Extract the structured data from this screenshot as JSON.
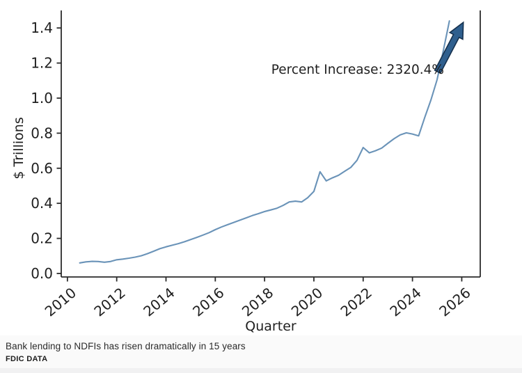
{
  "figure": {
    "caption": "Bank lending to NDFIs has risen dramatically in 15 years",
    "source": "FDIC DATA"
  },
  "chart_data": {
    "type": "line",
    "title": "",
    "xlabel": "Quarter",
    "ylabel": "$ Trillions",
    "annotation": "Percent Increase: 2320.4%",
    "x_tick_labels": [
      "2010",
      "2012",
      "2014",
      "2016",
      "2018",
      "2020",
      "2022",
      "2024",
      "2026"
    ],
    "x_tick_values": [
      2010,
      2012,
      2014,
      2016,
      2018,
      2020,
      2022,
      2024,
      2026
    ],
    "y_tick_labels": [
      "0.0",
      "0.2",
      "0.4",
      "0.6",
      "0.8",
      "1.0",
      "1.2",
      "1.4"
    ],
    "y_tick_values": [
      0.0,
      0.2,
      0.4,
      0.6,
      0.8,
      1.0,
      1.2,
      1.4
    ],
    "xlim": [
      2009.75,
      2026.75
    ],
    "ylim": [
      -0.02,
      1.5
    ],
    "grid": false,
    "legend": "none",
    "colors": {
      "line": "#6a93b8",
      "arrow_fill": "#2f5f8e",
      "arrow_edge": "#16314e",
      "axis": "#2b2b2b",
      "text": "#1f1f1f"
    },
    "arrow": {
      "points_to": "series-end",
      "direction": "up-right"
    },
    "series": [
      {
        "x": [
          2010.5,
          2010.75,
          2011.0,
          2011.25,
          2011.5,
          2011.75,
          2012.0,
          2012.25,
          2012.5,
          2012.75,
          2013.0,
          2013.25,
          2013.5,
          2013.75,
          2014.0,
          2014.25,
          2014.5,
          2014.75,
          2015.0,
          2015.25,
          2015.5,
          2015.75,
          2016.0,
          2016.25,
          2016.5,
          2016.75,
          2017.0,
          2017.25,
          2017.5,
          2017.75,
          2018.0,
          2018.25,
          2018.5,
          2018.75,
          2019.0,
          2019.25,
          2019.5,
          2019.75,
          2020.0,
          2020.25,
          2020.5,
          2020.75,
          2021.0,
          2021.25,
          2021.5,
          2021.75,
          2022.0,
          2022.25,
          2022.5,
          2022.75,
          2023.0,
          2023.25,
          2023.5,
          2023.75,
          2024.0,
          2024.25,
          2024.5,
          2024.75,
          2025.0,
          2025.25,
          2025.5
        ],
        "y": [
          0.06,
          0.066,
          0.069,
          0.068,
          0.064,
          0.068,
          0.078,
          0.082,
          0.087,
          0.093,
          0.101,
          0.113,
          0.127,
          0.141,
          0.152,
          0.161,
          0.17,
          0.181,
          0.193,
          0.206,
          0.219,
          0.233,
          0.25,
          0.265,
          0.278,
          0.291,
          0.304,
          0.317,
          0.33,
          0.341,
          0.353,
          0.362,
          0.372,
          0.388,
          0.408,
          0.412,
          0.408,
          0.432,
          0.468,
          0.58,
          0.528,
          0.545,
          0.56,
          0.583,
          0.605,
          0.645,
          0.718,
          0.688,
          0.7,
          0.715,
          0.742,
          0.768,
          0.79,
          0.802,
          0.795,
          0.785,
          0.89,
          0.99,
          1.105,
          1.27,
          1.44
        ]
      }
    ]
  }
}
